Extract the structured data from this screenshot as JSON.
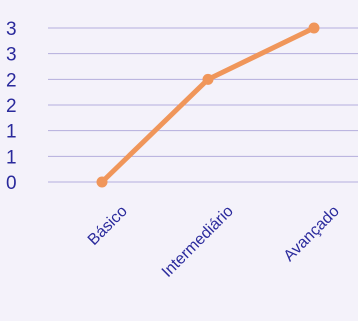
{
  "chart_data": {
    "type": "line",
    "categories": [
      "Básico",
      "Intermediário",
      "Avançado"
    ],
    "series": [
      {
        "values": [
          0,
          2,
          3
        ]
      }
    ],
    "ytick_values": [
      0,
      0.5,
      1,
      1.5,
      2,
      2.5,
      3
    ],
    "ytick_labels": [
      "0",
      "1",
      "1",
      "2",
      "2",
      "3",
      "3"
    ],
    "ylim": [
      0,
      3
    ],
    "grid": true,
    "legend": "none",
    "colors": {
      "line": "#f0965a",
      "grid": "#b4aedd",
      "text": "#2a2a9c",
      "background": "#f4f2fa"
    }
  }
}
